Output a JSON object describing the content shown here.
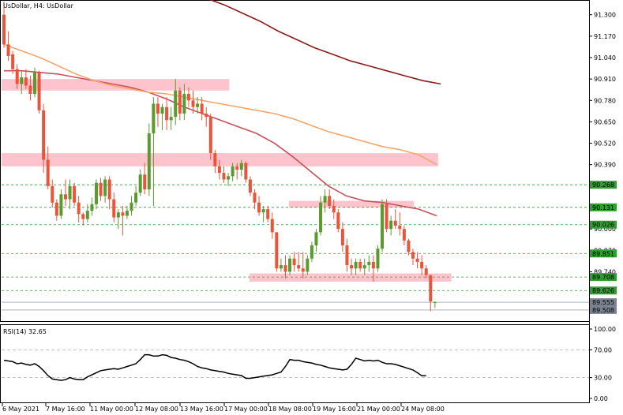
{
  "title": "UsDollar, H4:  UsDollar",
  "rsi_title": "RSI(14) 32.65",
  "colors": {
    "bull": "#5a9a2e",
    "bear": "#e8553a",
    "zone": "#ffc0cb",
    "ma_fast": "#c8505a",
    "ma_mid": "#f5a56a",
    "ma_slow": "#8b1a1a",
    "level": "#2e9e2e",
    "grid": "#d0d0d0"
  },
  "chart_data": {
    "type": "candlestick",
    "price_axis": {
      "ylim": [
        89.45,
        91.38
      ],
      "ticks": [
        "91.300",
        "91.170",
        "91.040",
        "90.910",
        "90.780",
        "90.650",
        "90.520",
        "90.390",
        "90.260",
        "90.130",
        "90.000",
        "89.870",
        "89.740"
      ]
    },
    "level_lines": [
      "90.268",
      "90.131",
      "90.026",
      "89.851",
      "89.708",
      "89.626"
    ],
    "price_tags": [
      "89.555",
      "89.508"
    ],
    "zones": [
      {
        "x_start": 0,
        "x_end": 101,
        "y_low": 90.84,
        "y_high": 90.91
      },
      {
        "x_start": 0,
        "x_end": 196,
        "y_low": 90.38,
        "y_high": 90.46
      },
      {
        "x_start": 131,
        "x_end": 185,
        "y_low": 90.13,
        "y_high": 90.17
      },
      {
        "x_start": 113,
        "x_end": 202,
        "y_low": 89.68,
        "y_high": 89.73
      }
    ],
    "candles": [
      [
        91.3,
        91.38,
        91.1,
        91.12
      ],
      [
        91.12,
        91.2,
        91.02,
        91.05
      ],
      [
        91.06,
        91.08,
        90.94,
        90.97
      ],
      [
        90.97,
        91.0,
        90.85,
        90.88
      ],
      [
        90.88,
        90.96,
        90.82,
        90.92
      ],
      [
        90.92,
        90.97,
        90.85,
        90.87
      ],
      [
        90.87,
        90.93,
        90.78,
        90.82
      ],
      [
        90.82,
        90.98,
        90.8,
        90.95
      ],
      [
        90.95,
        90.96,
        90.7,
        90.72
      ],
      [
        90.72,
        90.76,
        90.34,
        90.42
      ],
      [
        90.42,
        90.5,
        90.24,
        90.26
      ],
      [
        90.26,
        90.3,
        90.13,
        90.16
      ],
      [
        90.16,
        90.18,
        90.05,
        90.08
      ],
      [
        90.08,
        90.24,
        90.06,
        90.21
      ],
      [
        90.21,
        90.3,
        90.14,
        90.18
      ],
      [
        90.18,
        90.3,
        90.12,
        90.26
      ],
      [
        90.26,
        90.28,
        90.14,
        90.16
      ],
      [
        90.16,
        90.2,
        90.04,
        90.09
      ],
      [
        90.09,
        90.1,
        90.02,
        90.06
      ],
      [
        90.06,
        90.15,
        90.04,
        90.11
      ],
      [
        90.11,
        90.19,
        90.08,
        90.15
      ],
      [
        90.15,
        90.3,
        90.12,
        90.28
      ],
      [
        90.28,
        90.31,
        90.17,
        90.2
      ],
      [
        90.2,
        90.32,
        90.16,
        90.3
      ],
      [
        90.3,
        90.32,
        90.12,
        90.18
      ],
      [
        90.18,
        90.22,
        90.04,
        90.07
      ],
      [
        90.07,
        90.12,
        90.0,
        90.1
      ],
      [
        90.1,
        90.14,
        89.96,
        90.08
      ],
      [
        90.08,
        90.14,
        90.06,
        90.11
      ],
      [
        90.11,
        90.2,
        90.08,
        90.16
      ],
      [
        90.16,
        90.26,
        90.14,
        90.22
      ],
      [
        90.22,
        90.36,
        90.2,
        90.33
      ],
      [
        90.33,
        90.4,
        90.21,
        90.24
      ],
      [
        90.24,
        90.64,
        90.2,
        90.58
      ],
      [
        90.58,
        90.8,
        90.14,
        90.76
      ],
      [
        90.76,
        90.8,
        90.62,
        90.7
      ],
      [
        90.7,
        90.76,
        90.6,
        90.74
      ],
      [
        90.74,
        90.8,
        90.6,
        90.66
      ],
      [
        90.66,
        90.74,
        90.6,
        90.68
      ],
      [
        90.68,
        90.91,
        90.63,
        90.84
      ],
      [
        90.84,
        90.86,
        90.66,
        90.7
      ],
      [
        90.7,
        90.88,
        90.66,
        90.82
      ],
      [
        90.82,
        90.86,
        90.74,
        90.78
      ],
      [
        90.78,
        90.84,
        90.7,
        90.74
      ],
      [
        90.74,
        90.8,
        90.7,
        90.76
      ],
      [
        90.76,
        90.8,
        90.66,
        90.7
      ],
      [
        90.7,
        90.74,
        90.62,
        90.68
      ],
      [
        90.68,
        90.7,
        90.42,
        90.46
      ],
      [
        90.46,
        90.48,
        90.34,
        90.38
      ],
      [
        90.38,
        90.42,
        90.3,
        90.34
      ],
      [
        90.34,
        90.38,
        90.28,
        90.3
      ],
      [
        90.3,
        90.34,
        90.26,
        90.32
      ],
      [
        90.32,
        90.4,
        90.29,
        90.38
      ],
      [
        90.38,
        90.4,
        90.3,
        90.36
      ],
      [
        90.36,
        90.42,
        90.32,
        90.4
      ],
      [
        90.4,
        90.41,
        90.28,
        90.3
      ],
      [
        90.3,
        90.32,
        90.2,
        90.22
      ],
      [
        90.22,
        90.24,
        90.12,
        90.16
      ],
      [
        90.16,
        90.2,
        90.08,
        90.1
      ],
      [
        90.1,
        90.14,
        90.04,
        90.12
      ],
      [
        90.12,
        90.14,
        90.04,
        90.06
      ],
      [
        90.06,
        90.1,
        89.94,
        89.98
      ],
      [
        89.98,
        89.98,
        89.74,
        89.76
      ],
      [
        89.76,
        89.82,
        89.74,
        89.78
      ],
      [
        89.78,
        89.84,
        89.7,
        89.74
      ],
      [
        89.74,
        89.84,
        89.72,
        89.82
      ],
      [
        89.82,
        89.86,
        89.74,
        89.78
      ],
      [
        89.78,
        89.86,
        89.74,
        89.76
      ],
      [
        89.76,
        89.86,
        89.7,
        89.74
      ],
      [
        89.74,
        89.84,
        89.72,
        89.82
      ],
      [
        89.82,
        89.92,
        89.8,
        89.9
      ],
      [
        89.9,
        90.0,
        89.86,
        89.98
      ],
      [
        89.98,
        90.2,
        89.96,
        90.16
      ],
      [
        90.16,
        90.24,
        90.1,
        90.2
      ],
      [
        90.2,
        90.24,
        90.12,
        90.14
      ],
      [
        90.14,
        90.18,
        90.06,
        90.1
      ],
      [
        90.1,
        90.12,
        89.98,
        90.0
      ],
      [
        90.0,
        90.04,
        89.86,
        89.9
      ],
      [
        89.9,
        89.94,
        89.74,
        89.78
      ],
      [
        89.78,
        89.82,
        89.72,
        89.76
      ],
      [
        89.76,
        89.82,
        89.72,
        89.8
      ],
      [
        89.8,
        89.82,
        89.74,
        89.76
      ],
      [
        89.76,
        89.82,
        89.72,
        89.78
      ],
      [
        89.78,
        89.84,
        89.74,
        89.8
      ],
      [
        89.8,
        89.84,
        89.68,
        89.76
      ],
      [
        89.76,
        89.9,
        89.74,
        89.88
      ],
      [
        89.88,
        90.18,
        89.86,
        90.15
      ],
      [
        90.15,
        90.18,
        89.98,
        90.0
      ],
      [
        90.0,
        90.08,
        89.96,
        90.05
      ],
      [
        90.05,
        90.12,
        90.0,
        90.02
      ],
      [
        90.02,
        90.1,
        89.96,
        90.0
      ],
      [
        90.0,
        90.02,
        89.9,
        89.93
      ],
      [
        89.93,
        89.94,
        89.84,
        89.86
      ],
      [
        89.86,
        89.88,
        89.78,
        89.82
      ],
      [
        89.82,
        89.86,
        89.76,
        89.8
      ],
      [
        89.8,
        89.84,
        89.72,
        89.76
      ],
      [
        89.76,
        89.78,
        89.7,
        89.72
      ],
      [
        89.72,
        89.72,
        89.5,
        89.56
      ],
      [
        89.555,
        89.56,
        89.52,
        89.555
      ]
    ],
    "ma_fast": [
      90.96,
      90.96,
      90.95,
      90.94,
      90.92,
      90.9,
      90.88,
      90.86,
      90.83,
      90.79,
      90.74,
      90.7,
      90.66,
      90.62,
      90.58,
      90.52,
      90.44,
      90.35,
      90.26,
      90.2,
      90.17,
      90.16,
      90.14,
      90.12,
      90.08
    ],
    "ma_mid": [
      91.12,
      91.08,
      91.04,
      90.99,
      90.94,
      90.9,
      90.87,
      90.85,
      90.83,
      90.82,
      90.8,
      90.78,
      90.76,
      90.74,
      90.72,
      90.7,
      90.67,
      90.63,
      90.59,
      90.56,
      90.53,
      90.5,
      90.48,
      90.45,
      90.39
    ],
    "ma_slow": [
      91.4,
      91.36,
      91.31,
      91.26,
      91.2,
      91.15,
      91.1,
      91.06,
      91.02,
      90.99,
      90.96,
      90.93,
      90.9,
      90.88
    ],
    "rsi": {
      "ylim": [
        0,
        100
      ],
      "ticks": [
        "100.00",
        "70.00",
        "30.00",
        "0.00"
      ],
      "values": [
        55,
        54,
        53,
        50,
        51,
        49,
        48,
        50,
        46,
        40,
        33,
        28,
        27,
        26,
        27,
        30,
        28,
        27,
        27,
        31,
        34,
        37,
        40,
        41,
        42,
        43,
        42,
        44,
        46,
        48,
        50,
        56,
        63,
        63,
        61,
        61,
        63,
        62,
        59,
        58,
        56,
        55,
        53,
        50,
        46,
        44,
        43,
        41,
        40,
        39,
        38,
        36,
        35,
        34,
        33,
        29,
        29,
        30,
        31,
        32,
        33,
        34,
        36,
        38,
        46,
        56,
        55,
        55,
        53,
        52,
        51,
        49,
        48,
        46,
        44,
        43,
        42,
        41,
        42,
        49,
        58,
        56,
        54,
        55,
        54,
        55,
        52,
        50,
        50,
        49,
        47,
        45,
        43,
        41,
        37,
        32.65,
        32.65
      ]
    },
    "x_labels": [
      "6 May 2021",
      "7 May 16:00",
      "11 May 00:00",
      "12 May 08:00",
      "13 May 16:00",
      "17 May 00:00",
      "18 May 08:00",
      "19 May 16:00",
      "21 May 00:00",
      "24 May 08:00"
    ]
  }
}
